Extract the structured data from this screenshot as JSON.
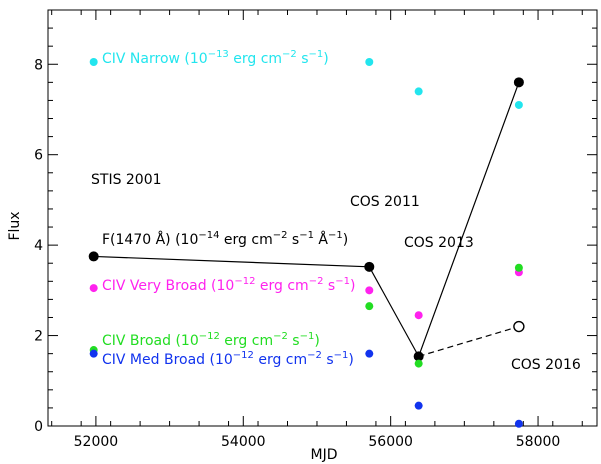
{
  "chart_data": {
    "type": "scatter",
    "title": "",
    "xlabel": "MJD",
    "ylabel": "Flux",
    "xlim": [
      51350,
      58800
    ],
    "ylim": [
      0,
      9.2
    ],
    "x_ticks": [
      52000,
      54000,
      56000,
      58000
    ],
    "x_tick_labels": [
      "52000",
      "54000",
      "56000",
      "58000"
    ],
    "y_ticks": [
      0,
      2,
      4,
      6,
      8
    ],
    "y_tick_labels": [
      "0",
      "2",
      "4",
      "6",
      "8"
    ],
    "grid": false,
    "series": [
      {
        "name": "CIV Narrow (10⁻¹³ erg cm⁻² s⁻¹)",
        "color": "#22e5ee",
        "marker": "dot",
        "x": [
          51970,
          55710,
          56380,
          57740
        ],
        "y": [
          8.05,
          8.05,
          7.4,
          7.1
        ]
      },
      {
        "name": "F(1470 Å) (10⁻¹⁴ erg cm⁻² s⁻¹ Å⁻¹)",
        "color": "#000000",
        "marker": "dot-large",
        "line": "solid",
        "x": [
          51970,
          55710,
          56380,
          57740
        ],
        "y": [
          3.75,
          3.52,
          1.54,
          7.6
        ]
      },
      {
        "name": "F(1470 Å) COS 2016 (dashed)",
        "color": "#000000",
        "marker": "open-circle",
        "line": "dashed",
        "x": [
          56380,
          57740
        ],
        "y": [
          1.54,
          2.2
        ]
      },
      {
        "name": "CIV Very Broad (10⁻¹² erg cm⁻² s⁻¹)",
        "color": "#ff22ee",
        "marker": "dot",
        "x": [
          51970,
          55710,
          56380,
          57740
        ],
        "y": [
          3.05,
          3.0,
          2.45,
          3.4
        ]
      },
      {
        "name": "CIV Broad (10⁻¹² erg cm⁻² s⁻¹)",
        "color": "#22dd22",
        "marker": "dot",
        "x": [
          51970,
          55710,
          56380,
          57740
        ],
        "y": [
          1.68,
          2.65,
          1.38,
          3.5
        ]
      },
      {
        "name": "CIV Med Broad (10⁻¹² erg cm⁻² s⁻¹)",
        "color": "#1133ee",
        "marker": "dot",
        "x": [
          51970,
          55710,
          56380,
          57740
        ],
        "y": [
          1.6,
          1.6,
          0.45,
          0.05
        ]
      }
    ],
    "legend_entries": [
      {
        "name": "CIV Narrow",
        "prefix": "CIV Narrow (10",
        "exp1": "−13",
        "mid": " erg cm",
        "exp2": "−2",
        "mid2": " s",
        "exp3": "−1",
        "suffix": ")",
        "color": "#22e5ee"
      },
      {
        "name": "CIV Very Broad",
        "prefix": "CIV Very Broad (10",
        "exp1": "−12",
        "mid": " erg cm",
        "exp2": "−2",
        "mid2": " s",
        "exp3": "−1",
        "suffix": ")",
        "color": "#ff22ee"
      },
      {
        "name": "CIV Broad",
        "prefix": "CIV Broad (10",
        "exp1": "−12",
        "mid": " erg cm",
        "exp2": "−2",
        "mid2": " s",
        "exp3": "−1",
        "suffix": ")",
        "color": "#22dd22"
      },
      {
        "name": "CIV Med Broad",
        "prefix": "CIV Med Broad (10",
        "exp1": "−12",
        "mid": " erg cm",
        "exp2": "−2",
        "mid2": " s",
        "exp3": "−1",
        "suffix": ")",
        "color": "#1133ee"
      }
    ],
    "flux_label": {
      "prefix": "F(1470 Å) (10",
      "exp1": "−14",
      "mid": " erg cm",
      "exp2": "−2",
      "mid2": " s",
      "exp3": "−1",
      "mid3": " Å",
      "exp4": "−1",
      "suffix": ")"
    },
    "annotations": [
      {
        "text": "STIS 2001"
      },
      {
        "text": "COS 2011"
      },
      {
        "text": "COS 2013"
      },
      {
        "text": "COS 2016"
      }
    ]
  }
}
